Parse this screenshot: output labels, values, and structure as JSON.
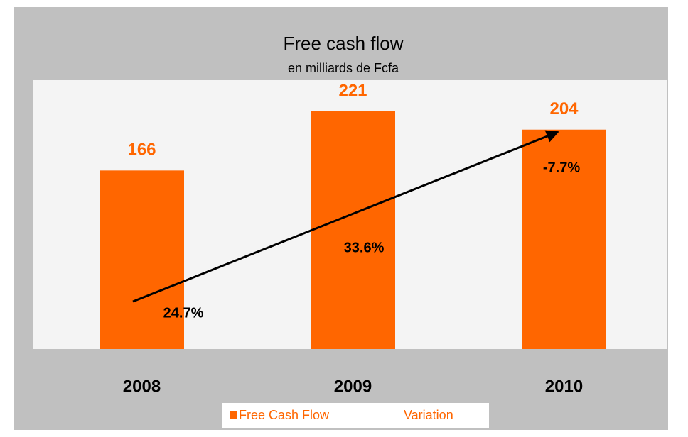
{
  "chart_data": {
    "type": "bar",
    "title": "Free cash flow",
    "subtitle": "en milliards de Fcfa",
    "categories": [
      "2008",
      "2009",
      "2010"
    ],
    "series": [
      {
        "name": "Free Cash Flow",
        "color": "#ff6600",
        "values": [
          166,
          221,
          204
        ]
      },
      {
        "name": "Variation",
        "color": "#ff6600",
        "values": [
          24.7,
          33.6,
          -7.7
        ],
        "value_labels": [
          "24.7%",
          "33.6%",
          "-7.7%"
        ]
      }
    ],
    "ylim": [
      0,
      250
    ],
    "legend": "bottom"
  }
}
